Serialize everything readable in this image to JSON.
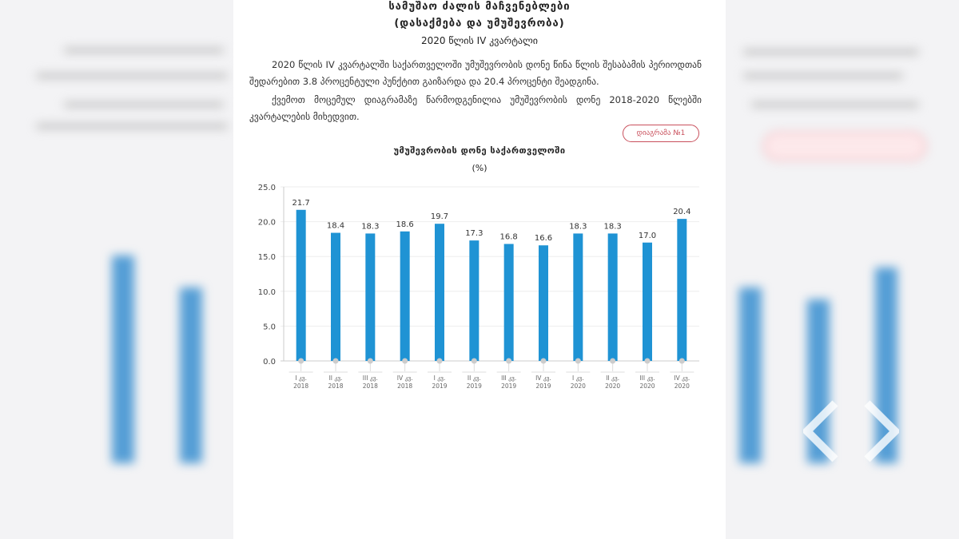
{
  "document": {
    "title_line1": "სამუშაო ძალის მაჩვენებლები",
    "title_line2": "(დასაქმება და უმუშევრობა)",
    "subtitle": "2020 წლის IV კვარტალი",
    "paragraph1": "2020 წლის IV კვარტალში საქართველოში უმუშევრობის დონე წინა წლის შესაბამის პერიოდთან შედარებით 3.8 პროცენტული პუნქტით გაიზარდა და 20.4 პროცენტი შეადგინა.",
    "paragraph2": "ქვემოთ მოცემულ დიაგრამაზე წარმოდგენილია უმუშევრობის დონე 2018-2020 წლებში კვარტალების მიხედვით.",
    "diagram_button": "დიაგრამა №1"
  },
  "colors": {
    "bar": "#1f93d4",
    "accent": "#c9505c"
  },
  "chart_data": {
    "type": "bar",
    "title": "უმუშევრობის დონე საქართველოში",
    "ylabel": "(%)",
    "categories": [
      [
        "I კვ.",
        "2018"
      ],
      [
        "II კვ.",
        "2018"
      ],
      [
        "III კვ.",
        "2018"
      ],
      [
        "IV კვ.",
        "2018"
      ],
      [
        "I კვ.",
        "2019"
      ],
      [
        "II კვ.",
        "2019"
      ],
      [
        "III კვ.",
        "2019"
      ],
      [
        "IV კვ.",
        "2019"
      ],
      [
        "I კვ.",
        "2020"
      ],
      [
        "II კვ.",
        "2020"
      ],
      [
        "III კვ.",
        "2020"
      ],
      [
        "IV კვ.",
        "2020"
      ]
    ],
    "values": [
      21.7,
      18.4,
      18.3,
      18.6,
      19.7,
      17.3,
      16.8,
      16.6,
      18.3,
      18.3,
      17.0,
      20.4
    ],
    "ylim": [
      0,
      25
    ],
    "yticks": [
      "0.0",
      "5.0",
      "10.0",
      "15.0",
      "20.0",
      "25.0"
    ],
    "grid": true
  }
}
